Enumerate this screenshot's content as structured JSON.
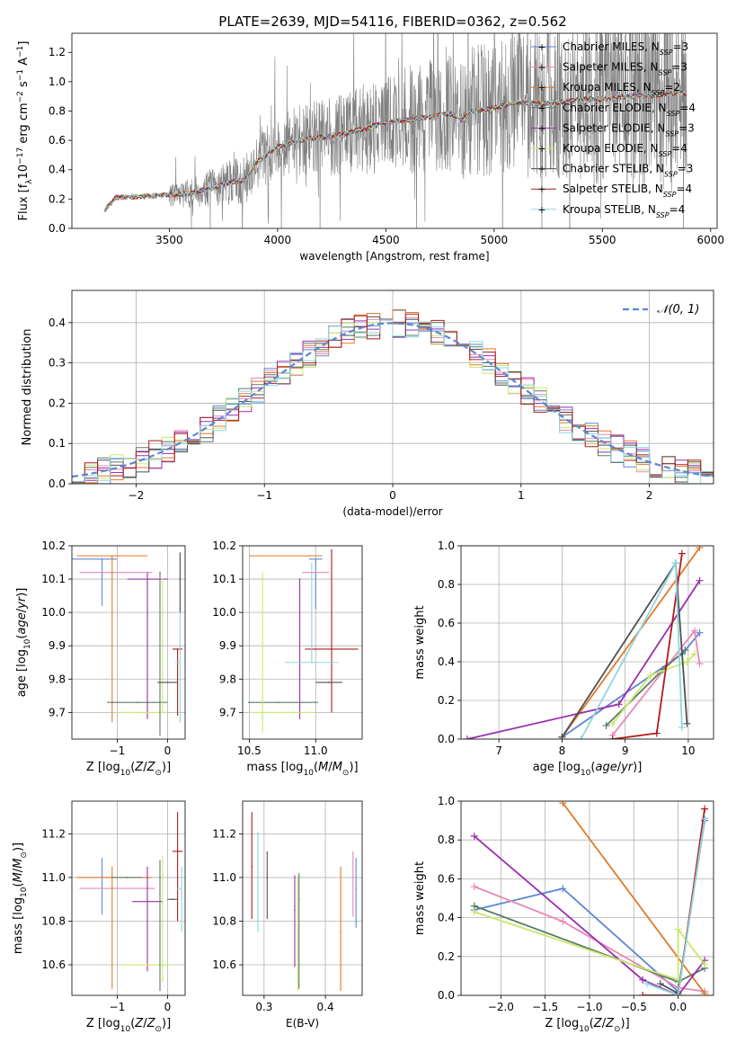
{
  "figure": {
    "title": "PLATE=2639, MJD=54116, FIBERID=0362, z=0.562"
  },
  "colors": {
    "grid": "#b0b0b0",
    "data_spectrum": "#808080",
    "gaussian": "#5b87d5"
  },
  "models": [
    {
      "name": "Chabrier MILES",
      "nssp": "3",
      "color": "#5b87d5"
    },
    {
      "name": "Salpeter MILES",
      "nssp": "3",
      "color": "#e887b8"
    },
    {
      "name": "Kroupa MILES",
      "nssp": "2",
      "color": "#e07b28"
    },
    {
      "name": "Chabrier ELODIE",
      "nssp": "4",
      "color": "#5a7a65"
    },
    {
      "name": "Salpeter ELODIE",
      "nssp": "3",
      "color": "#9b2fae"
    },
    {
      "name": "Kroupa ELODIE",
      "nssp": "4",
      "color": "#c8e86a"
    },
    {
      "name": "Chabrier STELIB",
      "nssp": "3",
      "color": "#505050"
    },
    {
      "name": "Salpeter STELIB",
      "nssp": "4",
      "color": "#b01a1a"
    },
    {
      "name": "Kroupa STELIB",
      "nssp": "4",
      "color": "#8ed6dd"
    }
  ],
  "chart_data": [
    {
      "id": "spectrum",
      "type": "line",
      "title": "PLATE=2639, MJD=54116, FIBERID=0362, z=0.562",
      "xlabel": "wavelength [Angstrom, rest frame]",
      "ylabel": "Flux [f_λ 10^-17 erg cm^-2 s^-1 A^-1]",
      "xlim": [
        3050,
        6030
      ],
      "ylim": [
        0,
        1.33
      ],
      "xticks": [
        3500,
        4000,
        4500,
        5000,
        5500,
        6000
      ],
      "yticks": [
        0.0,
        0.2,
        0.4,
        0.6,
        0.8,
        1.0,
        1.2
      ],
      "data_range": [
        3200,
        5890
      ],
      "model_continuum": {
        "x": [
          3200,
          3250,
          3400,
          3500,
          3600,
          3700,
          3800,
          3850,
          3900,
          3950,
          4000,
          4100,
          4200,
          4300,
          4400,
          4500,
          4600,
          4700,
          4800,
          4850,
          4900,
          5000,
          5100,
          5200,
          5300,
          5400,
          5500,
          5600,
          5700,
          5800,
          5890
        ],
        "y": [
          0.12,
          0.21,
          0.22,
          0.23,
          0.24,
          0.28,
          0.32,
          0.33,
          0.45,
          0.5,
          0.56,
          0.6,
          0.62,
          0.64,
          0.68,
          0.72,
          0.74,
          0.76,
          0.78,
          0.74,
          0.8,
          0.82,
          0.86,
          0.85,
          0.86,
          0.88,
          0.88,
          0.9,
          0.9,
          0.92,
          0.92
        ]
      },
      "legend_location": "upper right"
    },
    {
      "id": "residuals",
      "type": "histogram",
      "xlabel": "(data-model)/error",
      "ylabel": "Normed distribution",
      "xlim": [
        -2.5,
        2.5
      ],
      "ylim": [
        0,
        0.48
      ],
      "xticks": [
        -2,
        -1,
        0,
        1,
        2
      ],
      "yticks": [
        0.0,
        0.1,
        0.2,
        0.3,
        0.4
      ],
      "bin_width": 0.1,
      "gaussian_label": "𝒩(0, 1)",
      "legend_location": "upper right"
    },
    {
      "id": "age_vs_Z",
      "type": "scatter",
      "xlabel": "Z [log10(Z/Z⊙)]",
      "ylabel": "age  [log10(age/yr)]",
      "xlim": [
        -1.9,
        0.35
      ],
      "ylim": [
        9.62,
        10.2
      ],
      "xticks": [
        -1,
        0
      ],
      "yticks": [
        9.7,
        9.8,
        9.9,
        10.0,
        10.1,
        10.2
      ],
      "points": [
        {
          "x": -1.3,
          "y": 10.16,
          "xerr": [
            0.85,
            0.3
          ],
          "yerr": [
            0.14,
            0.0
          ],
          "model": 0
        },
        {
          "x": -1.0,
          "y": 10.12,
          "xerr": [
            0.75,
            0.7
          ],
          "yerr": [
            0.0,
            0.0
          ],
          "model": 1
        },
        {
          "x": -1.1,
          "y": 10.17,
          "xerr": [
            0.7,
            0.7
          ],
          "yerr": [
            0.5,
            0.0
          ],
          "model": 2
        },
        {
          "x": -0.6,
          "y": 9.73,
          "xerr": [
            0.6,
            0.6
          ],
          "yerr": [
            0.0,
            0.0
          ],
          "model": 3
        },
        {
          "x": -0.4,
          "y": 10.1,
          "xerr": [
            0.4,
            0.4
          ],
          "yerr": [
            0.42,
            0.02
          ],
          "model": 4
        },
        {
          "x": -0.5,
          "y": 9.7,
          "xerr": [
            0.5,
            0.5
          ],
          "yerr": [
            0.0,
            0.0
          ],
          "model": 5
        },
        {
          "x": -0.15,
          "y": 10.12,
          "xerr": [
            0.0,
            0.0
          ],
          "yerr": [
            0.49,
            0.0
          ],
          "model": 3
        },
        {
          "x": -0.1,
          "y": 10.1,
          "xerr": [
            0.0,
            0.0
          ],
          "yerr": [
            0.4,
            0.0
          ],
          "model": 5
        },
        {
          "x": 0.0,
          "y": 9.79,
          "xerr": [
            0.2,
            0.2
          ],
          "yerr": [
            0.0,
            0.0
          ],
          "model": 6
        },
        {
          "x": 0.2,
          "y": 9.89,
          "xerr": [
            0.1,
            0.1
          ],
          "yerr": [
            0.2,
            0.0
          ],
          "model": 7
        },
        {
          "x": 0.25,
          "y": 9.85,
          "xerr": [
            0.1,
            0.0
          ],
          "yerr": [
            0.18,
            0.33
          ],
          "model": 8
        },
        {
          "x": 0.25,
          "y": 10.1,
          "xerr": [
            0.0,
            0.0
          ],
          "yerr": [
            0.1,
            0.08
          ],
          "model": 6
        }
      ]
    },
    {
      "id": "age_vs_mass",
      "type": "scatter",
      "xlabel": "mass [log10(M/M⊙)]",
      "ylabel": "",
      "xlim": [
        10.45,
        11.35
      ],
      "ylim": [
        9.62,
        10.2
      ],
      "xticks": [
        10.5,
        11.0
      ],
      "yticks": [
        9.7,
        9.8,
        9.9,
        10.0,
        10.1,
        10.2
      ],
      "points": [
        {
          "x": 11.0,
          "y": 10.16,
          "xerr": [
            0.05,
            0.05
          ],
          "yerr": [
            0.15,
            0.0
          ],
          "model": 0
        },
        {
          "x": 11.0,
          "y": 10.12,
          "xerr": [
            0.1,
            0.1
          ],
          "yerr": [
            0.0,
            0.0
          ],
          "model": 1
        },
        {
          "x": 10.95,
          "y": 10.17,
          "xerr": [
            0.45,
            0.1
          ],
          "yerr": [
            0.0,
            0.0
          ],
          "model": 2
        },
        {
          "x": 10.72,
          "y": 9.73,
          "xerr": [
            0.23,
            0.3
          ],
          "yerr": [
            0.0,
            0.0
          ],
          "model": 3
        },
        {
          "x": 10.88,
          "y": 10.1,
          "xerr": [
            0.0,
            0.0
          ],
          "yerr": [
            0.42,
            0.0
          ],
          "model": 4
        },
        {
          "x": 10.6,
          "y": 9.7,
          "xerr": [
            0.1,
            0.4
          ],
          "yerr": [
            0.06,
            0.42
          ],
          "model": 5
        },
        {
          "x": 11.1,
          "y": 9.79,
          "xerr": [
            0.1,
            0.1
          ],
          "yerr": [
            0.0,
            0.0
          ],
          "model": 6
        },
        {
          "x": 11.12,
          "y": 9.89,
          "xerr": [
            0.2,
            0.2
          ],
          "yerr": [
            0.19,
            0.3
          ],
          "model": 7
        },
        {
          "x": 10.97,
          "y": 9.85,
          "xerr": [
            0.2,
            0.2
          ],
          "yerr": [
            0.0,
            0.3
          ],
          "model": 8
        }
      ]
    },
    {
      "id": "weight_vs_age",
      "type": "line",
      "xlabel": "age  [log10(age/yr)]",
      "ylabel": "mass weight",
      "xlim": [
        6.4,
        10.4
      ],
      "ylim": [
        0,
        1.0
      ],
      "xticks": [
        7,
        8,
        9,
        10
      ],
      "yticks": [
        0.0,
        0.2,
        0.4,
        0.6,
        0.8,
        1.0
      ],
      "series": [
        {
          "model": 0,
          "x": [
            8.0,
            9.9,
            10.18
          ],
          "y": [
            0.01,
            0.44,
            0.55
          ]
        },
        {
          "model": 1,
          "x": [
            8.8,
            10.1,
            10.18
          ],
          "y": [
            0.02,
            0.56,
            0.39
          ]
        },
        {
          "model": 2,
          "x": [
            8.0,
            10.18
          ],
          "y": [
            0.01,
            0.99
          ]
        },
        {
          "model": 3,
          "x": [
            8.7,
            9.6,
            9.95
          ],
          "y": [
            0.07,
            0.36,
            0.46
          ]
        },
        {
          "model": 4,
          "x": [
            6.5,
            8.9,
            10.18
          ],
          "y": [
            0.0,
            0.18,
            0.82
          ]
        },
        {
          "model": 5,
          "x": [
            8.8,
            9.4,
            9.98,
            10.1
          ],
          "y": [
            0.08,
            0.33,
            0.4,
            0.44
          ]
        },
        {
          "model": 6,
          "x": [
            8.0,
            9.8,
            9.98
          ],
          "y": [
            0.01,
            0.91,
            0.08
          ]
        },
        {
          "model": 7,
          "x": [
            8.8,
            9.5,
            9.9
          ],
          "y": [
            0.0,
            0.03,
            0.96
          ]
        },
        {
          "model": 8,
          "x": [
            8.3,
            9.8,
            9.9
          ],
          "y": [
            0.0,
            0.91,
            0.06
          ]
        }
      ]
    },
    {
      "id": "mass_vs_Z",
      "type": "scatter",
      "xlabel": "Z [log10(Z/Z⊙)]",
      "ylabel": "mass [log10(M/M⊙)]",
      "xlim": [
        -1.9,
        0.35
      ],
      "ylim": [
        10.46,
        11.35
      ],
      "xticks": [
        -1,
        0
      ],
      "yticks": [
        10.6,
        10.8,
        11.0,
        11.2
      ],
      "points": [
        {
          "x": -1.3,
          "y": 11.0,
          "xerr": [
            0.5,
            0.3
          ],
          "yerr": [
            0.17,
            0.09
          ],
          "model": 0
        },
        {
          "x": -1.0,
          "y": 10.95,
          "xerr": [
            0.75,
            0.75
          ],
          "yerr": [
            0.0,
            0.0
          ],
          "model": 1
        },
        {
          "x": -1.1,
          "y": 11.0,
          "xerr": [
            0.7,
            0.8
          ],
          "yerr": [
            0.51,
            0.05
          ],
          "model": 2
        },
        {
          "x": -0.8,
          "y": 11.0,
          "xerr": [
            0.3,
            0.3
          ],
          "yerr": [
            0.0,
            0.0
          ],
          "model": 3
        },
        {
          "x": -0.4,
          "y": 10.89,
          "xerr": [
            0.3,
            0.3
          ],
          "yerr": [
            0.32,
            0.16
          ],
          "model": 4
        },
        {
          "x": -0.4,
          "y": 10.6,
          "xerr": [
            0.5,
            0.5
          ],
          "yerr": [
            0.0,
            0.0
          ],
          "model": 5
        },
        {
          "x": -0.15,
          "y": 11.0,
          "xerr": [
            0.0,
            0.0
          ],
          "yerr": [
            0.52,
            0.08
          ],
          "model": 3
        },
        {
          "x": -0.1,
          "y": 11.0,
          "xerr": [
            0.0,
            0.0
          ],
          "yerr": [
            0.48,
            0.1
          ],
          "model": 5
        },
        {
          "x": 0.1,
          "y": 10.9,
          "xerr": [
            0.1,
            0.1
          ],
          "yerr": [
            0.0,
            0.0
          ],
          "model": 6
        },
        {
          "x": 0.2,
          "y": 11.12,
          "xerr": [
            0.1,
            0.1
          ],
          "yerr": [
            0.32,
            0.18
          ],
          "model": 7
        },
        {
          "x": 0.28,
          "y": 10.95,
          "xerr": [
            0.1,
            0.0
          ],
          "yerr": [
            0.2,
            0.1
          ],
          "model": 8
        }
      ]
    },
    {
      "id": "mass_vs_EBV",
      "type": "scatter",
      "xlabel": "E(B-V)",
      "ylabel": "",
      "xlim": [
        0.265,
        0.46
      ],
      "ylim": [
        10.46,
        11.35
      ],
      "xticks": [
        0.3,
        0.4
      ],
      "yticks": [
        10.6,
        10.8,
        11.0,
        11.2
      ],
      "points": [
        {
          "x": 0.28,
          "y": 11.05,
          "yerr": [
            0.24,
            0.25
          ],
          "model": 7
        },
        {
          "x": 0.29,
          "y": 11.0,
          "yerr": [
            0.25,
            0.21
          ],
          "model": 8
        },
        {
          "x": 0.305,
          "y": 11.0,
          "yerr": [
            0.19,
            0.12
          ],
          "model": 6
        },
        {
          "x": 0.35,
          "y": 10.85,
          "yerr": [
            0.26,
            0.16
          ],
          "model": 4
        },
        {
          "x": 0.355,
          "y": 10.85,
          "yerr": [
            0.37,
            0.15
          ],
          "model": 5
        },
        {
          "x": 0.357,
          "y": 10.9,
          "yerr": [
            0.41,
            0.12
          ],
          "model": 3
        },
        {
          "x": 0.425,
          "y": 10.75,
          "yerr": [
            0.27,
            0.3
          ],
          "model": 2
        },
        {
          "x": 0.445,
          "y": 11.0,
          "yerr": [
            0.18,
            0.12
          ],
          "model": 1
        },
        {
          "x": 0.45,
          "y": 10.95,
          "yerr": [
            0.18,
            0.14
          ],
          "model": 0
        }
      ]
    },
    {
      "id": "weight_vs_Z",
      "type": "line",
      "xlabel": "Z [log10(Z/Z⊙)]",
      "ylabel": "mass weight",
      "xlim": [
        -2.45,
        0.4
      ],
      "ylim": [
        0,
        1.0
      ],
      "xticks": [
        -2.0,
        -1.5,
        -1.0,
        -0.5,
        0.0
      ],
      "yticks": [
        0.0,
        0.2,
        0.4,
        0.6,
        0.8,
        1.0
      ],
      "series": [
        {
          "model": 0,
          "x": [
            -2.3,
            -1.3,
            0.0,
            0.3
          ],
          "y": [
            0.44,
            0.55,
            0.02,
            0.9
          ]
        },
        {
          "model": 1,
          "x": [
            -2.3,
            -1.3,
            0.0,
            0.3
          ],
          "y": [
            0.56,
            0.38,
            0.04,
            0.02
          ]
        },
        {
          "model": 2,
          "x": [
            -1.3,
            0.3
          ],
          "y": [
            0.99,
            0.01
          ]
        },
        {
          "model": 3,
          "x": [
            -2.3,
            0.0,
            0.3
          ],
          "y": [
            0.46,
            0.07,
            0.14
          ]
        },
        {
          "model": 4,
          "x": [
            -2.3,
            -0.4,
            0.0,
            0.3
          ],
          "y": [
            0.82,
            0.08,
            0.0,
            0.18
          ]
        },
        {
          "model": 5,
          "x": [
            -2.3,
            0.0,
            0.0,
            0.3
          ],
          "y": [
            0.43,
            0.08,
            0.34,
            0.16
          ]
        },
        {
          "model": 6,
          "x": [
            -0.2,
            0.0,
            0.3
          ],
          "y": [
            0.06,
            0.01,
            0.91
          ]
        },
        {
          "model": 7,
          "x": [
            -0.4,
            0.0,
            0.3
          ],
          "y": [
            0.0,
            0.0,
            0.96
          ]
        },
        {
          "model": 8,
          "x": [
            -0.35,
            0.0,
            0.3
          ],
          "y": [
            0.06,
            0.0,
            0.91
          ]
        }
      ]
    }
  ]
}
